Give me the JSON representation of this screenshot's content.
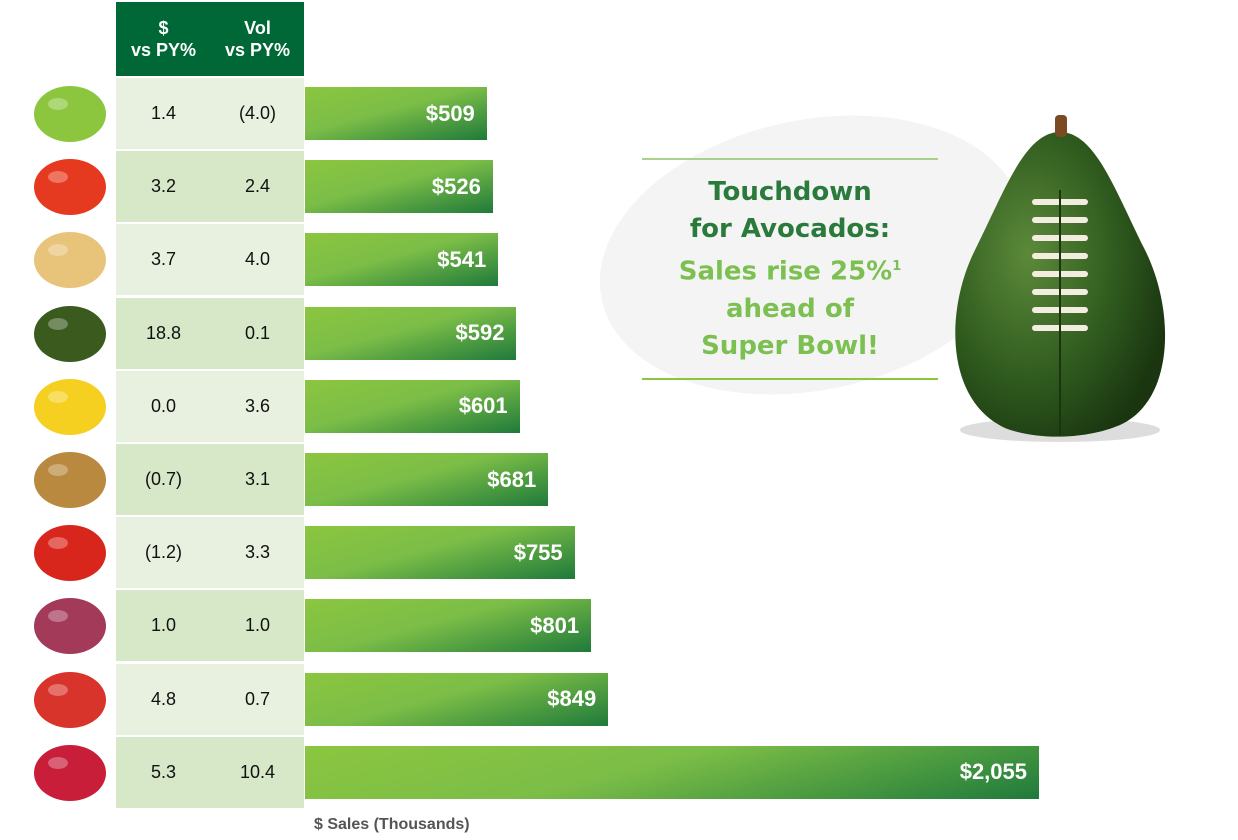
{
  "chart_data": {
    "type": "bar",
    "orientation": "horizontal",
    "categories": [
      "lettuce-icon",
      "peppers-icon",
      "onion-icon",
      "avocado-icon",
      "banana-icon",
      "potato-icon",
      "tomato-icon",
      "grapes-icon",
      "apple-icon",
      "berries-icon"
    ],
    "values": [
      509,
      526,
      541,
      592,
      601,
      681,
      755,
      801,
      849,
      2055
    ],
    "value_labels": [
      "$509",
      "$526",
      "$541",
      "$592",
      "$601",
      "$681",
      "$755",
      "$801",
      "$849",
      "$2,055"
    ],
    "xlabel": "$ Sales (Thousands)",
    "xlim": [
      0,
      2055
    ],
    "bar_color": "#7bbd47",
    "table": {
      "headers": [
        {
          "line1": "$",
          "line2": "vs PY%"
        },
        {
          "line1": "Vol",
          "line2": "vs PY%"
        }
      ],
      "dollar_vs_py": [
        "1.4",
        "3.2",
        "3.7",
        "18.8",
        "0.0",
        "(0.7)",
        "(1.2)",
        "1.0",
        "4.8",
        "5.3"
      ],
      "vol_vs_py": [
        "(4.0)",
        "2.4",
        "4.0",
        "0.1",
        "3.6",
        "3.1",
        "3.3",
        "1.0",
        "0.7",
        "10.4"
      ]
    }
  },
  "callout": {
    "line1": "Touchdown",
    "line2": "for Avocados:",
    "line3": "Sales rise 25%",
    "sup": "1",
    "line4": "ahead of",
    "line5": "Super Bowl!"
  },
  "colors": {
    "header": "#006837",
    "row_a": "#e8f1df",
    "row_b": "#d6e8c8",
    "dark_text": "#2a7a3b",
    "light_text": "#7dc052"
  }
}
